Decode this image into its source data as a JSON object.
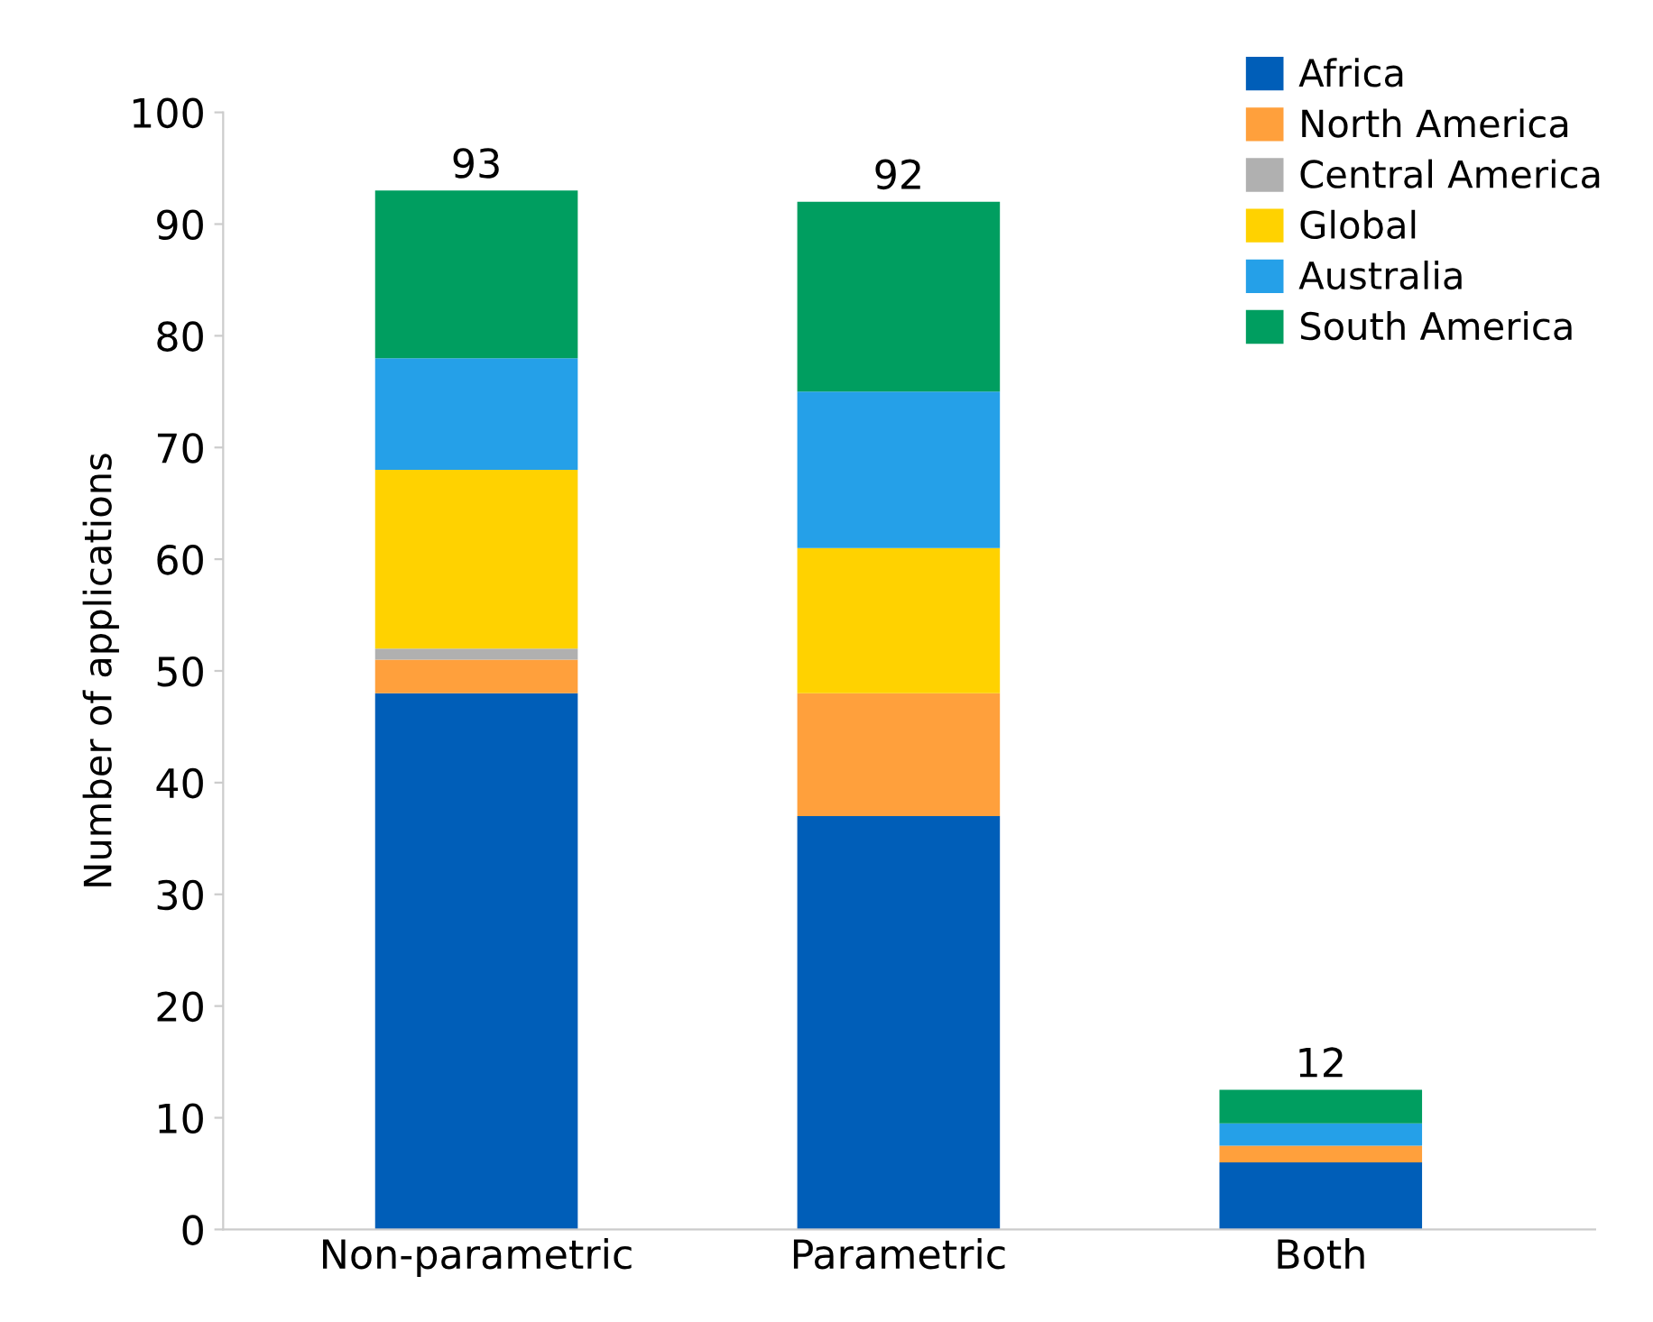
{
  "chart_data": {
    "type": "bar",
    "stacked": true,
    "ylabel": "Number of applications",
    "categories": [
      "Non-parametric",
      "Parametric",
      "Both"
    ],
    "series": [
      {
        "name": "Africa",
        "color": "#005eb8",
        "values": [
          48,
          37,
          6
        ]
      },
      {
        "name": "North America",
        "color": "#ffa03c",
        "values": [
          3,
          11,
          1.5
        ]
      },
      {
        "name": "Central America",
        "color": "#b0b0b0",
        "values": [
          1,
          0,
          0
        ]
      },
      {
        "name": "Global",
        "color": "#ffd200",
        "values": [
          16,
          13,
          0
        ]
      },
      {
        "name": "Australia",
        "color": "#25a0e8",
        "values": [
          10,
          14,
          2
        ]
      },
      {
        "name": "South America",
        "color": "#009e60",
        "values": [
          15,
          17,
          3
        ]
      }
    ],
    "totals": [
      "93",
      "92",
      "12"
    ],
    "ylim": [
      0,
      100
    ],
    "yticks": [
      0,
      10,
      20,
      30,
      40,
      50,
      60,
      70,
      80,
      90,
      100
    ],
    "grid": false,
    "legend": "top right"
  }
}
